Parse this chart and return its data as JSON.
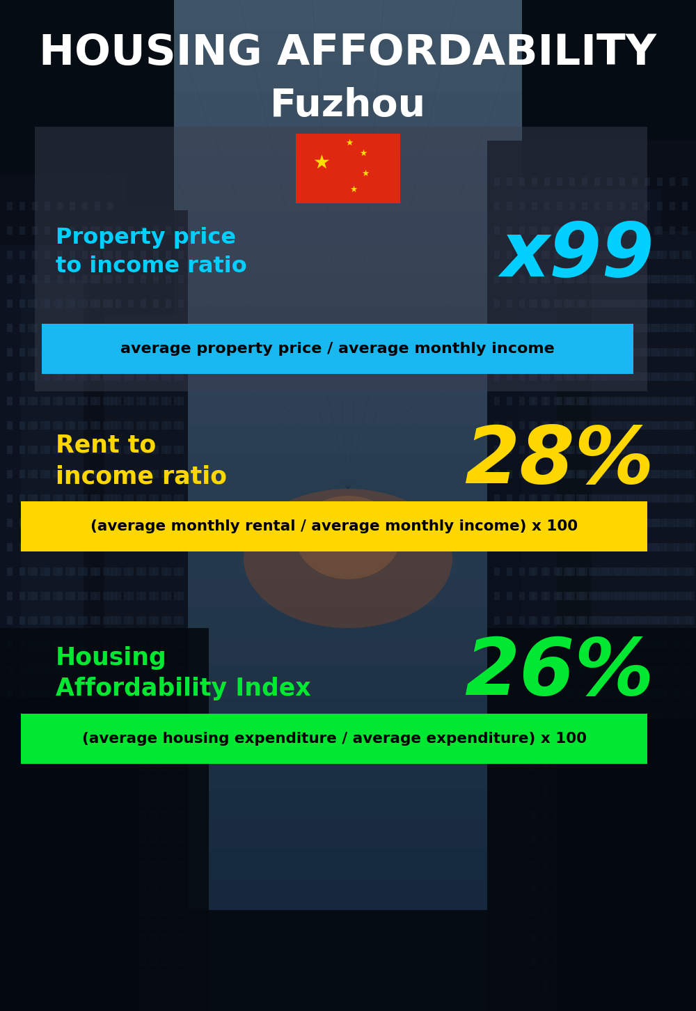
{
  "title_line1": "HOUSING AFFORDABILITY",
  "title_line2": "Fuzhou",
  "section1_label": "Property price\nto income ratio",
  "section1_value": "x99",
  "section1_sublabel": "average property price / average monthly income",
  "section1_label_color": "#00cfff",
  "section1_value_color": "#00cfff",
  "section1_bg_color": "#1ab8f0",
  "section2_label": "Rent to\nincome ratio",
  "section2_value": "28%",
  "section2_sublabel": "(average monthly rental / average monthly income) x 100",
  "section2_label_color": "#ffd700",
  "section2_value_color": "#ffd700",
  "section2_bg_color": "#ffd700",
  "section3_label": "Housing\nAffordability Index",
  "section3_value": "26%",
  "section3_sublabel": "(average housing expenditure / average expenditure) x 100",
  "section3_label_color": "#00e832",
  "section3_value_color": "#00e832",
  "section3_bg_color": "#00e832",
  "bg_color": "#060c14",
  "title_color": "#ffffff",
  "sublabel_text_color": "#000000",
  "flag_red": "#de2910",
  "flag_yellow": "#ffde00"
}
